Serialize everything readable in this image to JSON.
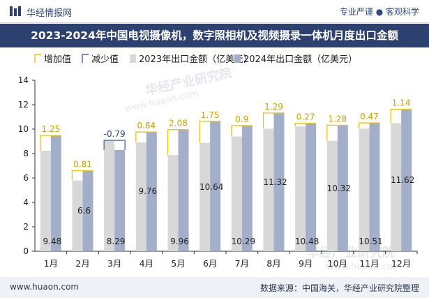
{
  "header": {
    "brand": "华经情报网",
    "tagline": "专业严谨 ● 客观科学"
  },
  "title": "2023-2024年中国电视摄像机，数字照相机及视频摄录一体机月度出口金额",
  "footer": {
    "website": "www.huaon.com",
    "source": "数据来源：中国海关，华经产业研究院整理"
  },
  "watermark": {
    "text1": "华经产业研究院",
    "text2": "www.huaon.com"
  },
  "colors": {
    "bar2023": "#d8d8d8",
    "bar2024": "#a3afc8",
    "increase": "#f5c400",
    "decrease": "#4a6796",
    "title_bg": "#2c4170"
  },
  "chart_data": {
    "type": "bar",
    "categories": [
      "1月",
      "2月",
      "3月",
      "4月",
      "5月",
      "6月",
      "7月",
      "8月",
      "9月",
      "10月",
      "11月",
      "12月"
    ],
    "series": [
      {
        "name": "2023年出口金额（亿美元）",
        "values": [
          8.23,
          5.79,
          9.08,
          8.92,
          7.88,
          8.89,
          9.39,
          10.03,
          10.21,
          9.04,
          10.04,
          10.48
        ]
      },
      {
        "name": "2024年出口金额（亿美元）",
        "values": [
          9.48,
          6.6,
          8.29,
          9.76,
          9.96,
          10.64,
          10.29,
          11.32,
          10.48,
          10.32,
          10.51,
          11.62
        ]
      }
    ],
    "change": [
      1.25,
      0.81,
      -0.79,
      0.84,
      2.08,
      1.75,
      0.9,
      1.29,
      0.27,
      1.28,
      0.47,
      1.14
    ],
    "legend": [
      "增加值",
      "减少值",
      "2023年出口金额（亿美元）",
      "2024年出口金额（亿美元）"
    ],
    "legend_position": "top-left",
    "yticks": [
      0,
      2,
      4,
      6,
      8,
      10,
      12,
      14
    ],
    "ylim": [
      0,
      14
    ],
    "grid": false
  }
}
